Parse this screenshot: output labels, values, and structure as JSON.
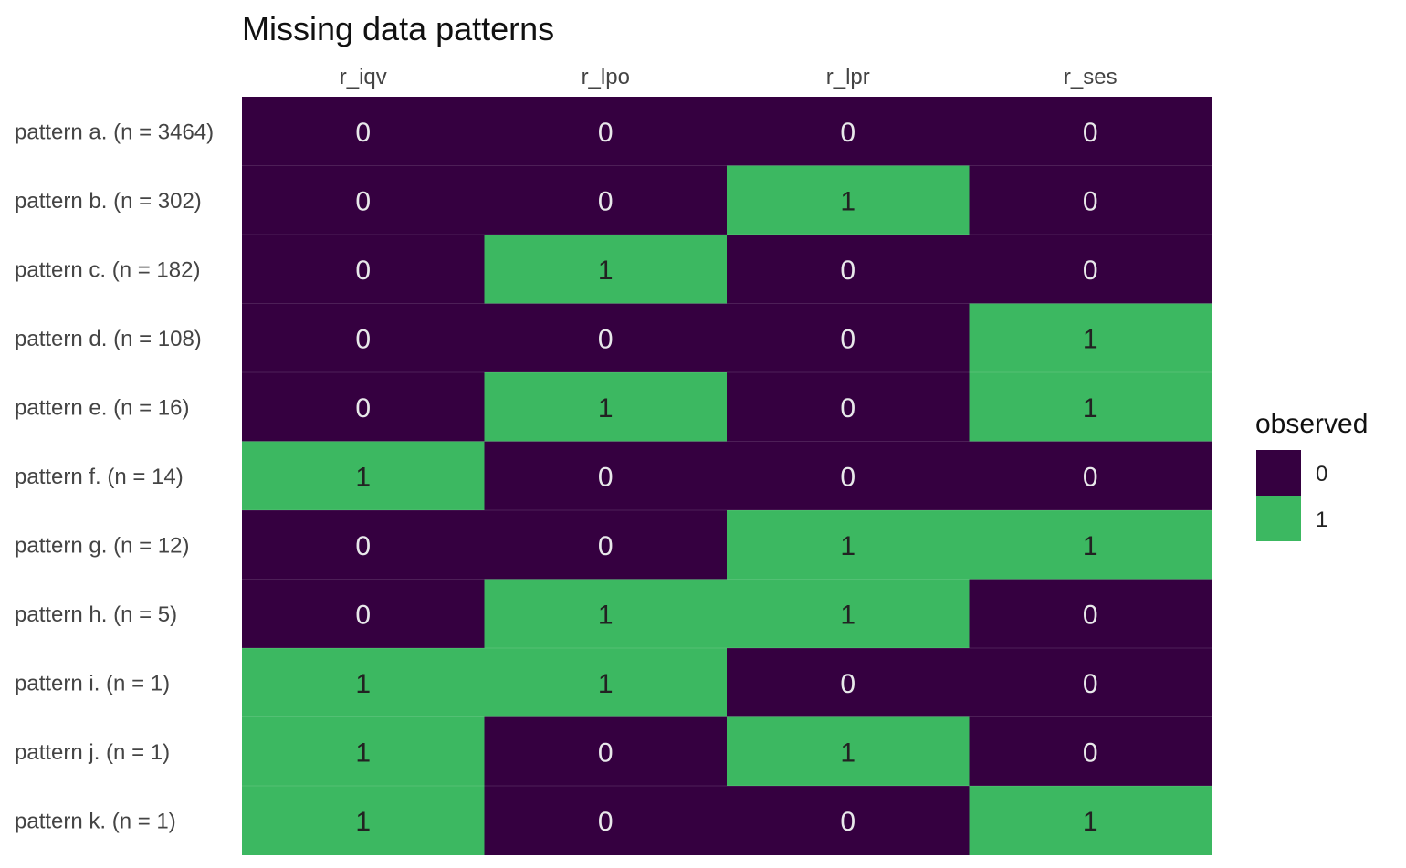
{
  "colors": {
    "zero": "#350040",
    "one": "#3CB861",
    "text_on_zero": "#e8e8ea",
    "text_on_one": "#222222",
    "axis_text": "#444444",
    "title_text": "#111111"
  },
  "chart_data": {
    "type": "heatmap",
    "title": "Missing data patterns",
    "columns": [
      "r_iqv",
      "r_lpo",
      "r_lpr",
      "r_ses"
    ],
    "rows": [
      "pattern a. (n = 3464)",
      "pattern b. (n = 302)",
      "pattern c. (n = 182)",
      "pattern d. (n = 108)",
      "pattern e. (n = 16)",
      "pattern f. (n = 14)",
      "pattern g. (n = 12)",
      "pattern h. (n = 5)",
      "pattern i. (n = 1)",
      "pattern j. (n = 1)",
      "pattern k. (n = 1)"
    ],
    "values": [
      [
        0,
        0,
        0,
        0
      ],
      [
        0,
        0,
        1,
        0
      ],
      [
        0,
        1,
        0,
        0
      ],
      [
        0,
        0,
        0,
        1
      ],
      [
        0,
        1,
        0,
        1
      ],
      [
        1,
        0,
        0,
        0
      ],
      [
        0,
        0,
        1,
        1
      ],
      [
        0,
        1,
        1,
        0
      ],
      [
        1,
        1,
        0,
        0
      ],
      [
        1,
        0,
        1,
        0
      ],
      [
        1,
        0,
        0,
        1
      ]
    ],
    "legend": {
      "title": "observed",
      "position": "right",
      "items": [
        {
          "label": "0",
          "value": 0
        },
        {
          "label": "1",
          "value": 1
        }
      ]
    }
  }
}
